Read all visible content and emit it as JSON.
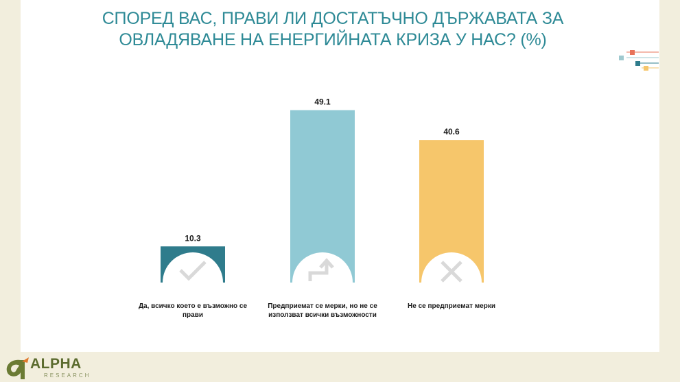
{
  "title_lines": [
    "СПОРЕД ВАС, ПРАВИ ЛИ ДОСТАТЪЧНО ДЪРЖАВАТА ЗА",
    "ОВЛАДЯВАНЕ НА ЕНЕРГИЙНАТА КРИЗА У НАС? (%)"
  ],
  "logo": {
    "word": "ALPHA",
    "sub": "RESEARCH"
  },
  "colors": {
    "title": "#2e8a96",
    "bars": [
      "#2f7c8c",
      "#90c9d4",
      "#f6c66b"
    ],
    "background": "#f2eedd"
  },
  "chart_data": {
    "type": "bar",
    "title": "СПОРЕД ВАС, ПРАВИ ЛИ ДОСТАТЪЧНО ДЪРЖАВАТА ЗА ОВЛАДЯВАНЕ НА ЕНЕРГИЙНАТА КРИЗА У НАС? (%)",
    "categories": [
      "Да, всичко което е възможно се прави",
      "Предприемат се мерки, но не се използват всички възможности",
      "Не се предприемат мерки"
    ],
    "category_lines": [
      [
        "Да, всичко което е възможно се",
        "прави"
      ],
      [
        "Предприемат се мерки, но не се",
        "използват всички възможности"
      ],
      [
        "Не се предприемат мерки"
      ]
    ],
    "values": [
      10.3,
      49.1,
      40.6
    ],
    "value_labels": [
      "10.3",
      "49.1",
      "40.6"
    ],
    "icons": [
      "check-icon",
      "turn-arrow-icon",
      "cross-icon"
    ],
    "ylim": [
      0,
      50
    ],
    "grid": false,
    "xlabel": "",
    "ylabel": ""
  }
}
